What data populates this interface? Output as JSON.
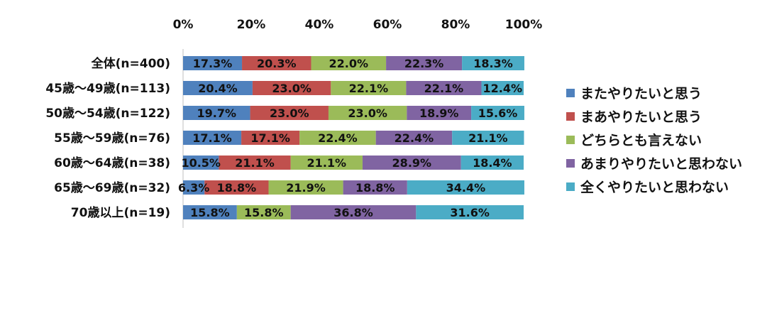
{
  "chart_data": {
    "type": "bar",
    "orientation": "horizontal",
    "stacked": "percent",
    "categories": [
      "全体(n=400)",
      "45歳〜49歳(n=113)",
      "50歳〜54歳(n=122)",
      "55歳〜59歳(n=76)",
      "60歳〜64歳(n=38)",
      "65歳〜69歳(n=32)",
      "70歳以上(n=19)"
    ],
    "x_ticks": [
      "0%",
      "20%",
      "40%",
      "60%",
      "80%",
      "100%"
    ],
    "xlim": [
      0,
      100
    ],
    "grid": false,
    "legend_position": "right",
    "series": [
      {
        "name": "またやりたいと思う",
        "color": "#4f81bd",
        "values": [
          17.3,
          20.4,
          19.7,
          17.1,
          10.5,
          6.3,
          15.8
        ],
        "labels": [
          "17.3%",
          "20.4%",
          "19.7%",
          "17.1%",
          "10.5%",
          "6.3%",
          "15.8%"
        ]
      },
      {
        "name": "まあやりたいと思う",
        "color": "#c0504d",
        "values": [
          20.3,
          23.0,
          23.0,
          17.1,
          21.1,
          18.8,
          0
        ],
        "labels": [
          "20.3%",
          "23.0%",
          "23.0%",
          "17.1%",
          "21.1%",
          "18.8%",
          ""
        ]
      },
      {
        "name": "どちらとも言えない",
        "color": "#9bbb59",
        "values": [
          22.0,
          22.1,
          23.0,
          22.4,
          21.1,
          21.9,
          15.8
        ],
        "labels": [
          "22.0%",
          "22.1%",
          "23.0%",
          "22.4%",
          "21.1%",
          "21.9%",
          "15.8%"
        ]
      },
      {
        "name": "あまりやりたいと思わない",
        "color": "#8064a2",
        "values": [
          22.3,
          22.1,
          18.9,
          22.4,
          28.9,
          18.8,
          36.8
        ],
        "labels": [
          "22.3%",
          "22.1%",
          "18.9%",
          "22.4%",
          "28.9%",
          "18.8%",
          "36.8%"
        ]
      },
      {
        "name": "全くやりたいと思わない",
        "color": "#4bacc6",
        "values": [
          18.3,
          12.4,
          15.6,
          21.1,
          18.4,
          34.4,
          31.6
        ],
        "labels": [
          "18.3%",
          "12.4%",
          "15.6%",
          "21.1%",
          "18.4%",
          "34.4%",
          "31.6%"
        ]
      }
    ]
  }
}
